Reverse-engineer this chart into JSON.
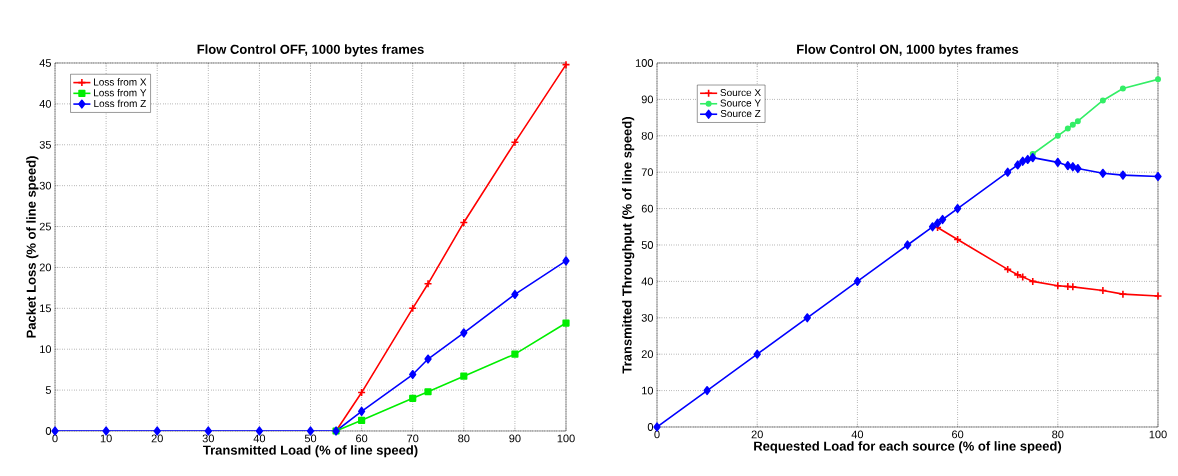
{
  "chart_data": [
    {
      "type": "line",
      "title": "Flow Control OFF, 1000 bytes frames",
      "xlabel": "Transmitted Load (% of line speed)",
      "ylabel": "Packet Loss (% of line speed)",
      "xlim": [
        0,
        100
      ],
      "ylim": [
        0,
        45
      ],
      "xticks": [
        0,
        10,
        20,
        30,
        40,
        50,
        60,
        70,
        80,
        90,
        100
      ],
      "yticks": [
        0,
        5,
        10,
        15,
        20,
        25,
        30,
        35,
        40,
        45
      ],
      "grid": true,
      "legend": "top left",
      "x": [
        0,
        10,
        20,
        30,
        40,
        50,
        55,
        60,
        70,
        73,
        80,
        90,
        100
      ],
      "series": [
        {
          "name": "Loss from X",
          "color": "#ff0000",
          "marker": "cross",
          "values": [
            null,
            null,
            null,
            null,
            null,
            null,
            0,
            4.7,
            15,
            18,
            25.5,
            35.3,
            44.8
          ]
        },
        {
          "name": "Loss from Y",
          "color": "#00ee00",
          "marker": "square",
          "values": [
            null,
            null,
            null,
            null,
            null,
            null,
            0,
            1.3,
            4,
            4.8,
            6.7,
            9.4,
            13.2
          ]
        },
        {
          "name": "Loss from Z",
          "color": "#0000ff",
          "marker": "diamond",
          "values": [
            0,
            0,
            0,
            0,
            0,
            0,
            0,
            2.4,
            6.9,
            8.8,
            12,
            16.7,
            20.8
          ]
        }
      ]
    },
    {
      "type": "line",
      "title": "Flow Control ON, 1000 bytes frames",
      "xlabel": "Requested Load for each source (% of line speed)",
      "ylabel": "Transmitted Throughput (% of line speed)",
      "xlim": [
        0,
        100
      ],
      "ylim": [
        0,
        100
      ],
      "xticks": [
        0,
        20,
        40,
        60,
        80,
        100
      ],
      "yticks": [
        0,
        10,
        20,
        30,
        40,
        50,
        60,
        70,
        80,
        90,
        100
      ],
      "grid": true,
      "legend": "top left",
      "series": [
        {
          "name": "Source X",
          "color": "#ff0000",
          "marker": "cross",
          "x": [
            56,
            60,
            70,
            72,
            73,
            75,
            80,
            82,
            83,
            89,
            93,
            100
          ],
          "values": [
            54.8,
            51.5,
            43.3,
            41.8,
            41.2,
            40,
            38.8,
            38.6,
            38.5,
            37.5,
            36.5,
            36
          ]
        },
        {
          "name": "Source Y",
          "color": "#33ee66",
          "marker": "circle",
          "x": [
            75,
            80,
            82,
            83,
            84,
            89,
            93,
            100
          ],
          "values": [
            75,
            80,
            82,
            83,
            84,
            89.7,
            93,
            95.5
          ]
        },
        {
          "name": "Source Z",
          "color": "#0000ff",
          "marker": "diamond",
          "x": [
            0,
            10,
            20,
            30,
            40,
            50,
            55,
            56,
            57,
            60,
            70,
            72,
            73,
            74,
            75,
            80,
            82,
            83,
            84,
            89,
            93,
            100
          ],
          "values": [
            0,
            10,
            20,
            30,
            40,
            50,
            55,
            56,
            57,
            60,
            70,
            72,
            73,
            73.5,
            74,
            72.7,
            71.8,
            71.5,
            71,
            69.7,
            69.2,
            68.8
          ]
        }
      ]
    }
  ]
}
